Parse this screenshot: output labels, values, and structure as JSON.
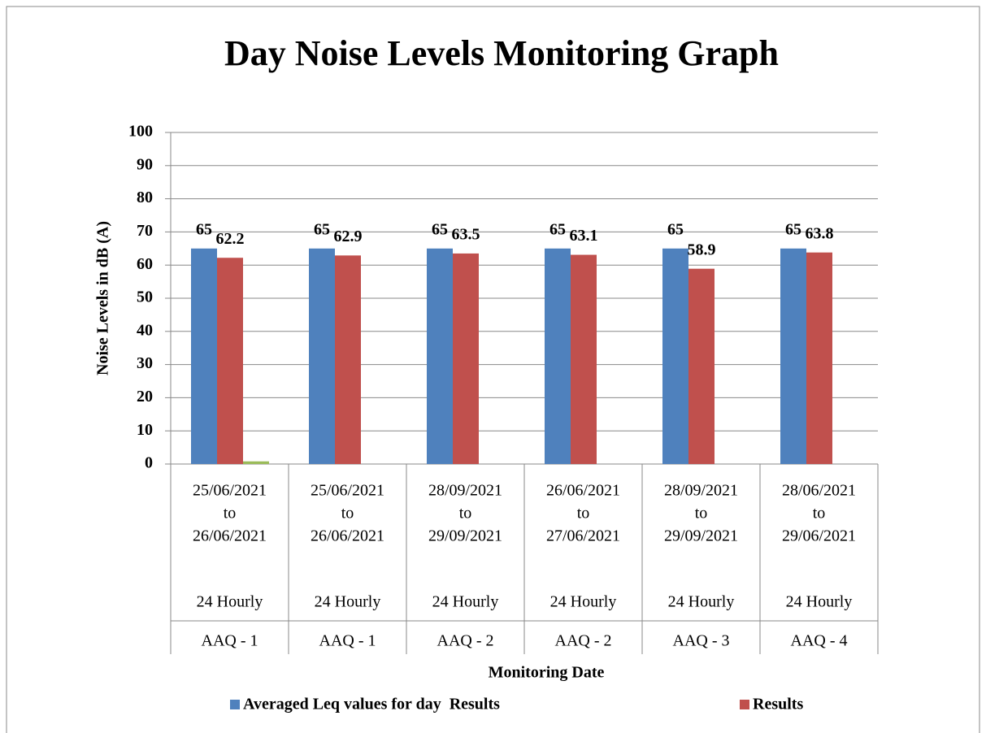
{
  "chart_data": {
    "type": "bar",
    "title": "Day Noise Levels Monitoring Graph",
    "y_label": "Noise Levels in dB (A)",
    "x_label": "Monitoring Date",
    "categories": [
      [
        "25/06/2021",
        "to",
        "26/06/2021",
        "24 Hourly",
        "AAQ - 1"
      ],
      [
        "25/06/2021",
        "to",
        "26/06/2021",
        "24 Hourly",
        "AAQ - 1"
      ],
      [
        "28/09/2021",
        "to",
        "29/09/2021",
        "24 Hourly",
        "AAQ - 2"
      ],
      [
        "26/06/2021",
        "to",
        "27/06/2021",
        "24 Hourly",
        "AAQ - 2"
      ],
      [
        "28/09/2021",
        "to",
        "29/09/2021",
        "24 Hourly",
        "AAQ - 3"
      ],
      [
        "28/06/2021",
        "to",
        "29/06/2021",
        "24 Hourly",
        "AAQ - 4"
      ]
    ],
    "series": [
      {
        "name": "Averaged Leq values for day  Results",
        "color": "#4f81bd",
        "values": [
          65,
          65,
          65,
          65,
          65,
          65
        ],
        "labels": true
      },
      {
        "name": "Results",
        "color": "#c0504d",
        "values": [
          62.2,
          62.9,
          63.5,
          63.1,
          58.9,
          63.8
        ],
        "labels": true
      },
      {
        "color": "#9bbb59",
        "values": [
          0.8,
          null,
          null,
          null,
          null,
          null
        ]
      }
    ],
    "ylim": [
      0,
      100
    ],
    "yticks": [
      0,
      10,
      20,
      30,
      40,
      50,
      60,
      70,
      80,
      90,
      100
    ],
    "grid": true,
    "legend": "bottom"
  }
}
